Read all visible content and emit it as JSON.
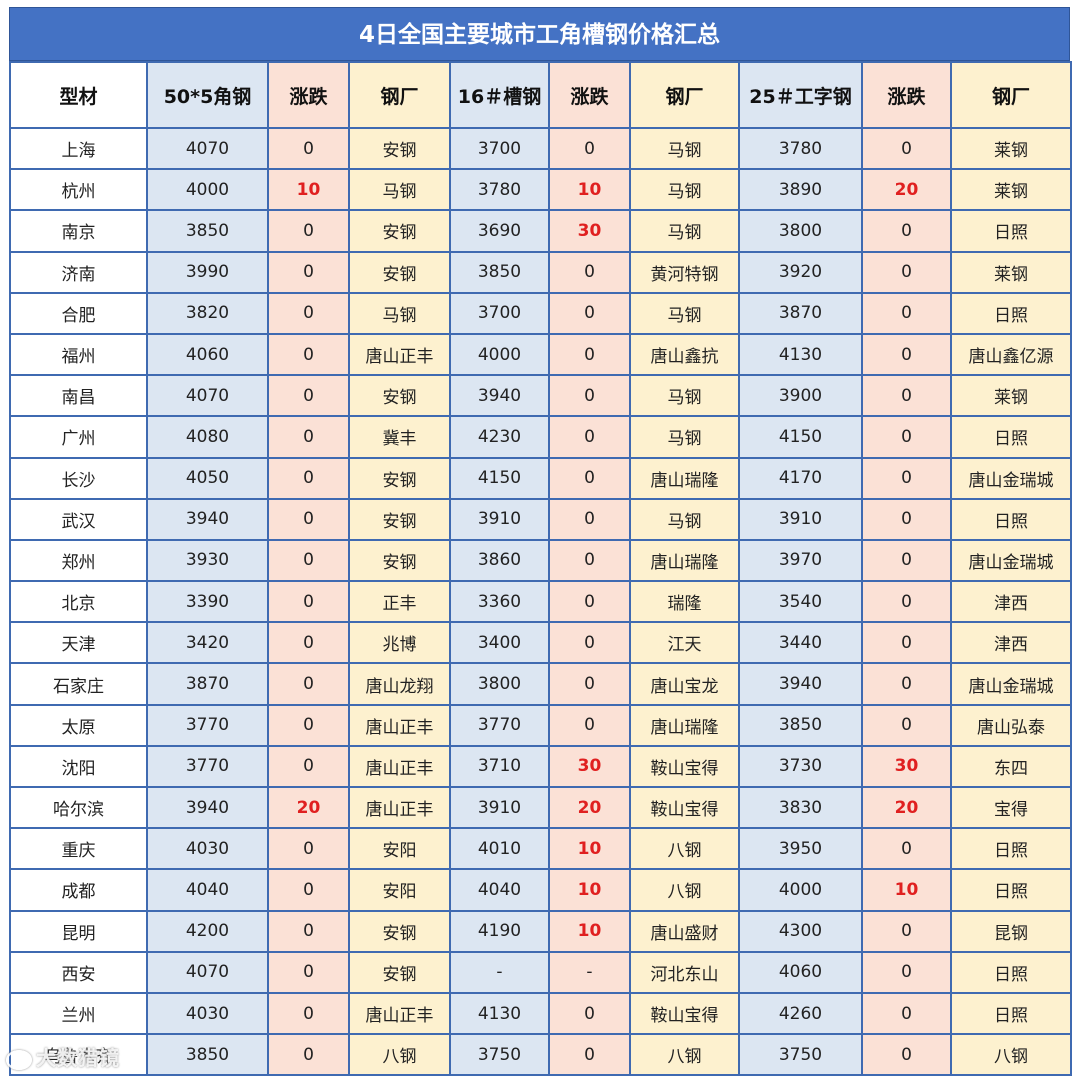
{
  "title": "4日全国主要城市工角槽钢价格汇总",
  "headers": [
    "型材",
    "50*5角钢",
    "涨跌",
    "钢厂",
    "16＃槽钢",
    "涨跌",
    "钢厂",
    "25＃工字钢",
    "涨跌",
    "钢厂"
  ],
  "rows": [
    [
      "上海",
      "4070",
      "0",
      "安钢",
      "3700",
      "0",
      "马钢",
      "3780",
      "0",
      "莱钢"
    ],
    [
      "杭州",
      "4000",
      "10",
      "马钢",
      "3780",
      "10",
      "马钢",
      "3890",
      "20",
      "莱钢"
    ],
    [
      "南京",
      "3850",
      "0",
      "安钢",
      "3690",
      "30",
      "马钢",
      "3800",
      "0",
      "日照"
    ],
    [
      "济南",
      "3990",
      "0",
      "安钢",
      "3850",
      "0",
      "黄河特钢",
      "3920",
      "0",
      "莱钢"
    ],
    [
      "合肥",
      "3820",
      "0",
      "马钢",
      "3700",
      "0",
      "马钢",
      "3870",
      "0",
      "日照"
    ],
    [
      "福州",
      "4060",
      "0",
      "唐山正丰",
      "4000",
      "0",
      "唐山鑫抗",
      "4130",
      "0",
      "唐山鑫亿源"
    ],
    [
      "南昌",
      "4070",
      "0",
      "安钢",
      "3940",
      "0",
      "马钢",
      "3900",
      "0",
      "莱钢"
    ],
    [
      "广州",
      "4080",
      "0",
      "冀丰",
      "4230",
      "0",
      "马钢",
      "4150",
      "0",
      "日照"
    ],
    [
      "长沙",
      "4050",
      "0",
      "安钢",
      "4150",
      "0",
      "唐山瑞隆",
      "4170",
      "0",
      "唐山金瑞城"
    ],
    [
      "武汉",
      "3940",
      "0",
      "安钢",
      "3910",
      "0",
      "马钢",
      "3910",
      "0",
      "日照"
    ],
    [
      "郑州",
      "3930",
      "0",
      "安钢",
      "3860",
      "0",
      "唐山瑞隆",
      "3970",
      "0",
      "唐山金瑞城"
    ],
    [
      "北京",
      "3390",
      "0",
      "正丰",
      "3360",
      "0",
      "瑞隆",
      "3540",
      "0",
      "津西"
    ],
    [
      "天津",
      "3420",
      "0",
      "兆博",
      "3400",
      "0",
      "江天",
      "3440",
      "0",
      "津西"
    ],
    [
      "石家庄",
      "3870",
      "0",
      "唐山龙翔",
      "3800",
      "0",
      "唐山宝龙",
      "3940",
      "0",
      "唐山金瑞城"
    ],
    [
      "太原",
      "3770",
      "0",
      "唐山正丰",
      "3770",
      "0",
      "唐山瑞隆",
      "3850",
      "0",
      "唐山弘泰"
    ],
    [
      "沈阳",
      "3770",
      "0",
      "唐山正丰",
      "3710",
      "30",
      "鞍山宝得",
      "3730",
      "30",
      "东四"
    ],
    [
      "哈尔滨",
      "3940",
      "20",
      "唐山正丰",
      "3910",
      "20",
      "鞍山宝得",
      "3830",
      "20",
      "宝得"
    ],
    [
      "重庆",
      "4030",
      "0",
      "安阳",
      "4010",
      "10",
      "八钢",
      "3950",
      "0",
      "日照"
    ],
    [
      "成都",
      "4040",
      "0",
      "安阳",
      "4040",
      "10",
      "八钢",
      "4000",
      "10",
      "日照"
    ],
    [
      "昆明",
      "4200",
      "0",
      "安钢",
      "4190",
      "10",
      "唐山盛财",
      "4300",
      "0",
      "昆钢"
    ],
    [
      "西安",
      "4070",
      "0",
      "安钢",
      "-",
      "-",
      "河北东山",
      "4060",
      "0",
      "日照"
    ],
    [
      "兰州",
      "4030",
      "0",
      "唐山正丰",
      "4130",
      "0",
      "鞍山宝得",
      "4260",
      "0",
      "日照"
    ],
    [
      "乌鲁木齐",
      "3850",
      "0",
      "八钢",
      "3750",
      "0",
      "八钢",
      "3750",
      "0",
      "八钢"
    ]
  ],
  "colors": {
    "title_bg": "#4472c4",
    "price_bg": "#dce6f2",
    "change_bg": "#fbe1d6",
    "mill_bg": "#fdf1cf",
    "rise_text": "#e02020"
  },
  "watermark": "大数猎镜"
}
